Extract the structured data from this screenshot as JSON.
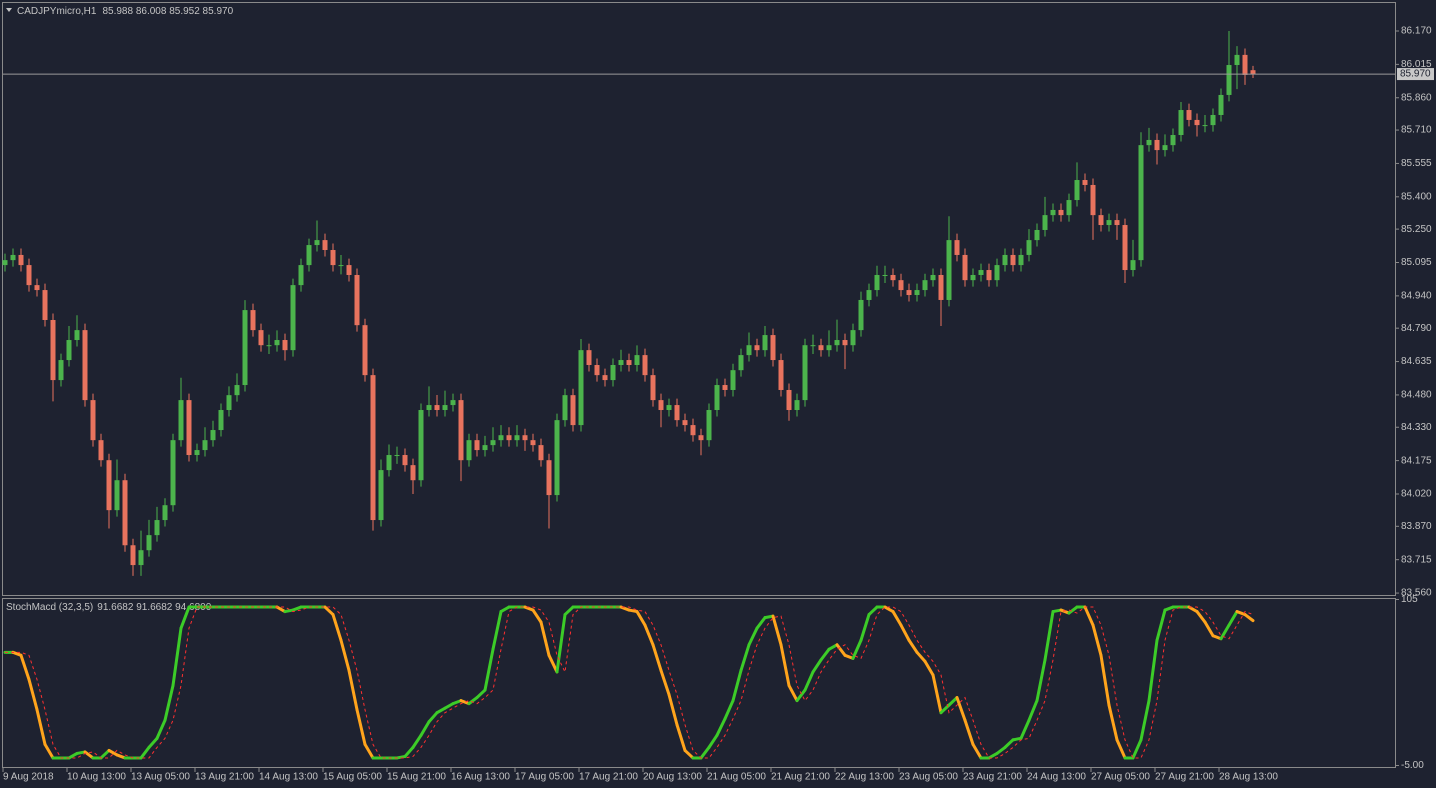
{
  "chart_data": [
    {
      "type": "candlestick",
      "title": "CADJPYmicro,H1",
      "legend_values": "85.988 86.008 85.952 85.970",
      "bull_color": "#4cb44c",
      "bear_color": "#e8735e",
      "ylim": [
        83.551,
        86.3
      ],
      "yticks": [
        {
          "value": 86.17,
          "label": "86.170"
        },
        86.015,
        {
          "value": 85.86,
          "label": "85.860"
        },
        {
          "value": 85.71,
          "label": "85.710"
        },
        85.555,
        {
          "value": 85.4,
          "label": "85.400"
        },
        {
          "value": 85.25,
          "label": "85.250"
        },
        85.095,
        {
          "value": 84.94,
          "label": "84.940"
        },
        {
          "value": 84.79,
          "label": "84.790"
        },
        84.635,
        {
          "value": 84.48,
          "label": "84.480"
        },
        {
          "value": 84.33,
          "label": "84.330"
        },
        84.175,
        {
          "value": 84.02,
          "label": "84.020"
        },
        {
          "value": 83.87,
          "label": "83.870"
        },
        83.715,
        {
          "value": 83.56,
          "label": "83.560"
        }
      ],
      "last_price": {
        "value": 85.97,
        "label": "85.970"
      },
      "open": [
        85.083,
        85.106,
        85.13,
        85.083,
        84.99,
        84.967,
        84.828,
        84.549,
        84.642,
        84.735,
        84.781,
        84.456,
        84.27,
        84.177,
        83.945,
        84.084,
        83.782,
        83.69,
        83.759,
        83.829,
        83.899,
        83.968,
        84.27,
        84.456,
        84.201,
        84.224,
        84.27,
        84.317,
        84.41,
        84.479,
        84.526,
        84.874,
        84.781,
        84.711,
        84.711,
        84.735,
        84.688,
        84.99,
        85.083,
        85.176,
        85.199,
        85.153,
        85.083,
        85.083,
        85.037,
        84.804,
        84.572,
        83.899,
        84.131,
        84.201,
        84.201,
        84.154,
        84.084,
        84.41,
        84.433,
        84.41,
        84.433,
        84.456,
        84.177,
        84.27,
        84.224,
        84.247,
        84.27,
        84.293,
        84.27,
        84.293,
        84.27,
        84.247,
        84.177,
        84.015,
        84.363,
        84.479,
        84.34,
        84.688,
        84.619,
        84.572,
        84.549,
        84.619,
        84.642,
        84.619,
        84.665,
        84.572,
        84.456,
        84.41,
        84.433,
        84.363,
        84.34,
        84.293,
        84.27,
        84.41,
        84.526,
        84.503,
        84.595,
        84.665,
        84.711,
        84.688,
        84.758,
        84.642,
        84.503,
        84.41,
        84.456,
        84.711,
        84.711,
        84.688,
        84.711,
        84.735,
        84.711,
        84.781,
        84.921,
        84.967,
        85.037,
        85.037,
        85.013,
        84.967,
        84.944,
        84.967,
        85.013,
        85.037,
        84.921,
        85.199,
        85.13,
        85.013,
        85.037,
        85.06,
        85.013,
        85.083,
        85.13,
        85.083,
        85.13,
        85.199,
        85.246,
        85.315,
        85.339,
        85.315,
        85.385,
        85.478,
        85.455,
        85.315,
        85.269,
        85.292,
        85.269,
        85.06,
        85.106,
        85.64,
        85.664,
        85.617,
        85.64,
        85.687,
        85.803,
        85.757,
        85.733,
        85.733,
        85.78,
        85.873,
        86.012,
        86.059,
        85.988
      ],
      "high": [
        85.136,
        85.16,
        85.16,
        85.113,
        85.02,
        84.997,
        84.858,
        84.672,
        84.8,
        84.85,
        84.811,
        84.486,
        84.3,
        84.207,
        84.18,
        84.114,
        83.812,
        83.85,
        83.9,
        83.96,
        84.0,
        84.3,
        84.56,
        84.486,
        84.254,
        84.33,
        84.36,
        84.44,
        84.52,
        84.58,
        84.92,
        84.904,
        84.811,
        84.76,
        84.78,
        84.765,
        85.02,
        85.113,
        85.206,
        85.29,
        85.229,
        85.183,
        85.13,
        85.113,
        85.067,
        84.834,
        84.602,
        84.18,
        84.25,
        84.24,
        84.231,
        84.184,
        84.44,
        84.52,
        84.48,
        84.5,
        84.486,
        84.486,
        84.3,
        84.3,
        84.29,
        84.33,
        84.34,
        84.33,
        84.34,
        84.323,
        84.3,
        84.277,
        84.207,
        84.393,
        84.509,
        84.509,
        84.74,
        84.718,
        84.649,
        84.602,
        84.649,
        84.69,
        84.672,
        84.71,
        84.695,
        84.602,
        84.486,
        84.463,
        84.463,
        84.393,
        84.37,
        84.323,
        84.44,
        84.556,
        84.556,
        84.625,
        84.695,
        84.77,
        84.741,
        84.8,
        84.788,
        84.672,
        84.533,
        84.486,
        84.741,
        84.76,
        84.741,
        84.78,
        84.83,
        84.765,
        84.811,
        84.96,
        84.997,
        85.08,
        85.08,
        85.067,
        85.043,
        84.997,
        84.997,
        85.043,
        85.067,
        85.067,
        85.31,
        85.229,
        85.16,
        85.067,
        85.09,
        85.09,
        85.113,
        85.16,
        85.16,
        85.16,
        85.25,
        85.276,
        85.4,
        85.369,
        85.369,
        85.415,
        85.56,
        85.508,
        85.485,
        85.345,
        85.322,
        85.322,
        85.299,
        85.2,
        85.7,
        85.72,
        85.694,
        85.69,
        85.717,
        85.84,
        85.833,
        85.787,
        85.78,
        85.81,
        85.903,
        86.17,
        86.1,
        86.089,
        86.008
      ],
      "low": [
        85.053,
        85.076,
        85.053,
        84.96,
        84.937,
        84.798,
        84.45,
        84.519,
        84.612,
        84.705,
        84.426,
        84.24,
        84.147,
        83.86,
        83.915,
        83.752,
        83.64,
        83.64,
        83.729,
        83.799,
        83.869,
        83.938,
        84.24,
        84.171,
        84.171,
        84.194,
        84.24,
        84.287,
        84.38,
        84.449,
        84.496,
        84.751,
        84.681,
        84.67,
        84.681,
        84.64,
        84.658,
        84.96,
        85.053,
        85.146,
        85.123,
        85.053,
        85.04,
        85.007,
        84.774,
        84.542,
        83.85,
        83.869,
        84.101,
        84.16,
        84.124,
        84.02,
        84.054,
        84.38,
        84.38,
        84.38,
        84.403,
        84.08,
        84.147,
        84.194,
        84.194,
        84.217,
        84.24,
        84.24,
        84.24,
        84.22,
        84.217,
        84.147,
        83.86,
        83.985,
        84.333,
        84.31,
        84.31,
        84.589,
        84.542,
        84.519,
        84.519,
        84.589,
        84.589,
        84.589,
        84.542,
        84.426,
        84.33,
        84.38,
        84.333,
        84.31,
        84.263,
        84.2,
        84.24,
        84.38,
        84.473,
        84.473,
        84.565,
        84.635,
        84.658,
        84.658,
        84.612,
        84.473,
        84.36,
        84.38,
        84.426,
        84.67,
        84.658,
        84.658,
        84.681,
        84.6,
        84.681,
        84.751,
        84.891,
        84.937,
        85.0,
        84.983,
        84.937,
        84.914,
        84.914,
        84.937,
        84.983,
        84.8,
        84.891,
        85.1,
        84.983,
        84.983,
        85.007,
        84.983,
        84.983,
        85.053,
        85.053,
        85.053,
        85.1,
        85.169,
        85.216,
        85.285,
        85.285,
        85.285,
        85.355,
        85.425,
        85.2,
        85.239,
        85.239,
        85.2,
        85.0,
        85.03,
        85.076,
        85.61,
        85.55,
        85.587,
        85.61,
        85.657,
        85.727,
        85.68,
        85.7,
        85.703,
        85.75,
        85.843,
        85.9,
        85.92,
        85.952
      ],
      "close": [
        85.106,
        85.13,
        85.083,
        84.99,
        84.967,
        84.828,
        84.549,
        84.642,
        84.735,
        84.781,
        84.456,
        84.27,
        84.177,
        83.945,
        84.084,
        83.782,
        83.69,
        83.759,
        83.829,
        83.899,
        83.968,
        84.27,
        84.456,
        84.201,
        84.224,
        84.27,
        84.317,
        84.41,
        84.479,
        84.526,
        84.874,
        84.781,
        84.711,
        84.711,
        84.735,
        84.688,
        84.99,
        85.083,
        85.176,
        85.199,
        85.153,
        85.083,
        85.083,
        85.037,
        84.804,
        84.572,
        83.899,
        84.131,
        84.201,
        84.201,
        84.154,
        84.084,
        84.41,
        84.433,
        84.41,
        84.433,
        84.456,
        84.177,
        84.27,
        84.224,
        84.247,
        84.27,
        84.293,
        84.27,
        84.293,
        84.27,
        84.247,
        84.177,
        84.015,
        84.363,
        84.479,
        84.34,
        84.688,
        84.619,
        84.572,
        84.549,
        84.619,
        84.642,
        84.619,
        84.665,
        84.572,
        84.456,
        84.41,
        84.433,
        84.363,
        84.34,
        84.293,
        84.27,
        84.41,
        84.526,
        84.503,
        84.595,
        84.665,
        84.711,
        84.688,
        84.758,
        84.642,
        84.503,
        84.41,
        84.456,
        84.711,
        84.711,
        84.688,
        84.711,
        84.735,
        84.711,
        84.781,
        84.921,
        84.967,
        85.037,
        85.037,
        85.013,
        84.967,
        84.944,
        84.967,
        85.013,
        85.037,
        84.921,
        85.199,
        85.13,
        85.013,
        85.037,
        85.06,
        85.013,
        85.083,
        85.13,
        85.083,
        85.13,
        85.199,
        85.246,
        85.315,
        85.339,
        85.315,
        85.385,
        85.478,
        85.455,
        85.315,
        85.269,
        85.292,
        85.269,
        85.06,
        85.106,
        85.64,
        85.664,
        85.617,
        85.64,
        85.687,
        85.803,
        85.757,
        85.733,
        85.733,
        85.78,
        85.873,
        86.012,
        86.059,
        85.966,
        85.97
      ]
    },
    {
      "type": "line",
      "title": "StochMacd (32,3,5)",
      "legend_values": "91.6682 91.6682 94.6800",
      "ylim": [
        -5,
        105
      ],
      "yticks": [
        105,
        {
          "value": -5,
          "label": "-5.00"
        }
      ],
      "categories": [
        "9 Aug 2018",
        null,
        null,
        null,
        null,
        null,
        null,
        null,
        "10 Aug 13:00",
        null,
        null,
        null,
        null,
        null,
        null,
        null,
        "13 Aug 05:00",
        null,
        null,
        null,
        null,
        null,
        null,
        null,
        "13 Aug 21:00",
        null,
        null,
        null,
        null,
        null,
        null,
        null,
        "14 Aug 13:00",
        null,
        null,
        null,
        null,
        null,
        null,
        null,
        "15 Aug 05:00",
        null,
        null,
        null,
        null,
        null,
        null,
        null,
        "15 Aug 21:00",
        null,
        null,
        null,
        null,
        null,
        null,
        null,
        "16 Aug 13:00",
        null,
        null,
        null,
        null,
        null,
        null,
        null,
        "17 Aug 05:00",
        null,
        null,
        null,
        null,
        null,
        null,
        null,
        "17 Aug 21:00",
        null,
        null,
        null,
        null,
        null,
        null,
        null,
        "20 Aug 13:00",
        null,
        null,
        null,
        null,
        null,
        null,
        null,
        "21 Aug 05:00",
        null,
        null,
        null,
        null,
        null,
        null,
        null,
        "21 Aug 21:00",
        null,
        null,
        null,
        null,
        null,
        null,
        null,
        "22 Aug 13:00",
        null,
        null,
        null,
        null,
        null,
        null,
        null,
        "23 Aug 05:00",
        null,
        null,
        null,
        null,
        null,
        null,
        null,
        "23 Aug 21:00",
        null,
        null,
        null,
        null,
        null,
        null,
        null,
        "24 Aug 13:00",
        null,
        null,
        null,
        null,
        null,
        null,
        null,
        "27 Aug 05:00",
        null,
        null,
        null,
        null,
        null,
        null,
        null,
        "27 Aug 21:00",
        null,
        null,
        null,
        null,
        null,
        null,
        null,
        "28 Aug 13:00",
        null,
        null,
        null,
        null
      ],
      "series": [
        {
          "up_color": "#3ccc28",
          "down_color": "#ffa41c",
          "values": [
            70,
            70,
            68,
            52,
            32,
            9,
            0,
            0,
            0,
            3,
            4,
            0,
            0,
            5,
            2,
            0,
            0,
            0,
            7,
            13,
            25,
            48,
            86,
            100,
            100,
            100,
            100,
            100,
            100,
            100,
            100,
            100,
            100,
            100,
            100,
            97,
            98,
            100,
            100,
            100,
            100,
            95,
            78,
            58,
            32,
            9,
            0,
            0,
            0,
            0,
            1,
            7,
            15,
            24,
            30,
            33,
            36,
            38,
            36,
            40,
            45,
            72,
            97,
            100,
            100,
            100,
            98,
            90,
            68,
            57,
            95,
            100,
            100,
            100,
            100,
            100,
            100,
            100,
            98,
            97,
            88,
            75,
            58,
            42,
            22,
            5,
            0,
            0,
            7,
            15,
            26,
            38,
            58,
            75,
            86,
            93,
            94,
            75,
            48,
            38,
            45,
            57,
            65,
            72,
            75,
            68,
            66,
            78,
            95,
            100,
            100,
            97,
            88,
            78,
            70,
            64,
            55,
            30,
            35,
            40,
            25,
            9,
            0,
            0,
            3,
            7,
            12,
            13,
            25,
            38,
            65,
            97,
            98,
            96,
            100,
            100,
            88,
            68,
            35,
            12,
            0,
            0,
            12,
            38,
            78,
            98,
            100,
            100,
            100,
            97,
            90,
            81,
            79,
            88,
            97,
            95,
            91
          ]
        },
        {
          "color": "#ff3030",
          "dashed": true,
          "values": [
            70,
            70,
            70,
            68,
            52,
            32,
            9,
            0,
            0,
            0,
            3,
            4,
            0,
            0,
            5,
            2,
            0,
            0,
            0,
            7,
            13,
            25,
            48,
            86,
            100,
            100,
            100,
            100,
            100,
            100,
            100,
            100,
            100,
            100,
            100,
            100,
            97,
            98,
            100,
            100,
            100,
            100,
            95,
            78,
            58,
            32,
            9,
            0,
            0,
            0,
            0,
            1,
            7,
            15,
            24,
            30,
            33,
            36,
            38,
            36,
            40,
            45,
            72,
            97,
            100,
            100,
            100,
            98,
            90,
            68,
            57,
            95,
            100,
            100,
            100,
            100,
            100,
            100,
            100,
            98,
            97,
            88,
            75,
            58,
            42,
            22,
            5,
            0,
            0,
            7,
            15,
            26,
            38,
            58,
            75,
            86,
            93,
            94,
            75,
            48,
            38,
            45,
            57,
            65,
            72,
            75,
            68,
            66,
            78,
            95,
            100,
            100,
            97,
            88,
            78,
            70,
            64,
            55,
            30,
            35,
            40,
            25,
            9,
            0,
            0,
            3,
            7,
            12,
            13,
            25,
            38,
            65,
            97,
            98,
            96,
            100,
            100,
            88,
            68,
            35,
            12,
            0,
            0,
            12,
            38,
            78,
            98,
            100,
            100,
            100,
            97,
            90,
            81,
            79,
            88,
            97,
            95
          ]
        }
      ]
    }
  ]
}
